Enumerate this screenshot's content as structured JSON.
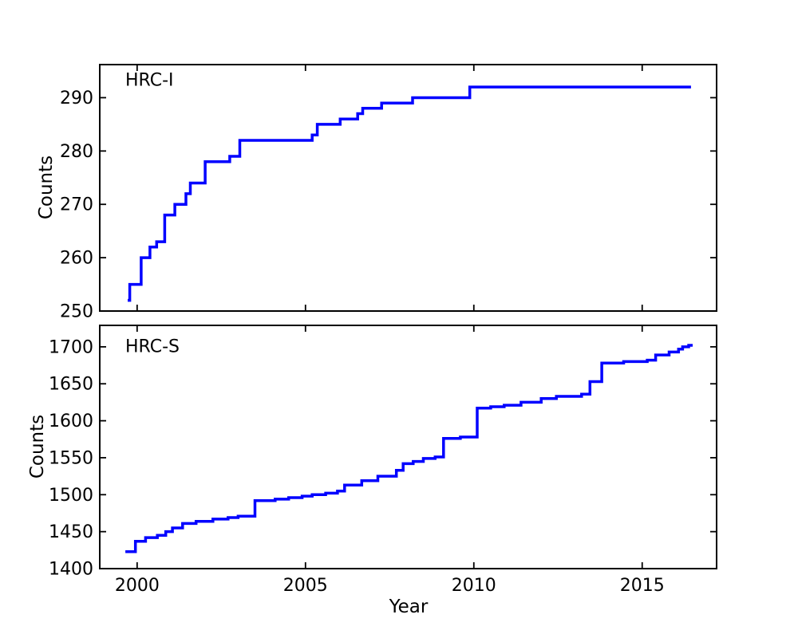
{
  "figure": {
    "background": "#ffffff",
    "text_color": "#000000",
    "spine_color": "#000000"
  },
  "chart_data": [
    {
      "type": "line",
      "annotation": "HRC-I",
      "ylabel": "Counts",
      "xlabel": "",
      "line_color": "#0000ff",
      "line_width": 3.5,
      "step": "post",
      "grid": false,
      "legend": "none",
      "xlim": [
        1998.89,
        2017.21
      ],
      "ylim": [
        250,
        296.2
      ],
      "xticks": [
        2000,
        2005,
        2010,
        2015
      ],
      "x_tick_labels": [],
      "yticks": [
        250,
        260,
        270,
        280,
        290
      ],
      "y_tick_labels": [
        "250",
        "260",
        "270",
        "280",
        "290"
      ],
      "x": [
        1999.72,
        1999.78,
        2000.12,
        2000.38,
        2000.58,
        2000.82,
        2001.12,
        2001.45,
        2001.58,
        2002.02,
        2002.75,
        2003.05,
        2005.2,
        2005.35,
        2006.03,
        2006.55,
        2006.7,
        2007.26,
        2008.18,
        2009.88,
        2016.45
      ],
      "y": [
        252,
        255,
        260,
        262,
        263,
        268,
        270,
        272,
        274,
        278,
        279,
        282,
        283,
        285,
        286,
        287,
        288,
        289,
        290,
        292,
        292
      ]
    },
    {
      "type": "line",
      "annotation": "HRC-S",
      "ylabel": "Counts",
      "xlabel": "Year",
      "line_color": "#0000ff",
      "line_width": 3.5,
      "step": "post",
      "grid": false,
      "legend": "none",
      "xlim": [
        1998.89,
        2017.21
      ],
      "ylim": [
        1400,
        1729
      ],
      "xticks": [
        2000,
        2005,
        2010,
        2015
      ],
      "x_tick_labels": [
        "2000",
        "2005",
        "2010",
        "2015"
      ],
      "yticks": [
        1400,
        1450,
        1500,
        1550,
        1600,
        1650,
        1700
      ],
      "y_tick_labels": [
        "1400",
        "1450",
        "1500",
        "1550",
        "1600",
        "1650",
        "1700"
      ],
      "x": [
        1999.65,
        1999.95,
        2000.25,
        2000.6,
        2000.85,
        2001.05,
        2001.35,
        2001.75,
        2002.25,
        2002.7,
        2003.0,
        2003.5,
        2004.1,
        2004.5,
        2004.9,
        2005.2,
        2005.6,
        2005.95,
        2006.16,
        2006.67,
        2007.15,
        2007.7,
        2007.9,
        2008.2,
        2008.5,
        2008.85,
        2009.1,
        2009.6,
        2010.1,
        2010.5,
        2010.9,
        2011.4,
        2012.0,
        2012.45,
        2013.2,
        2013.45,
        2013.8,
        2014.45,
        2015.15,
        2015.4,
        2015.8,
        2016.08,
        2016.2,
        2016.38,
        2016.5
      ],
      "y": [
        1423,
        1437,
        1442,
        1445,
        1450,
        1455,
        1461,
        1464,
        1467,
        1469,
        1471,
        1492,
        1494,
        1496,
        1498,
        1500,
        1502,
        1505,
        1513,
        1519,
        1525,
        1533,
        1542,
        1545,
        1549,
        1551,
        1576,
        1578,
        1617,
        1619,
        1621,
        1625,
        1630,
        1633,
        1636,
        1653,
        1678,
        1680,
        1682,
        1689,
        1693,
        1697,
        1700,
        1702,
        1702
      ]
    }
  ]
}
